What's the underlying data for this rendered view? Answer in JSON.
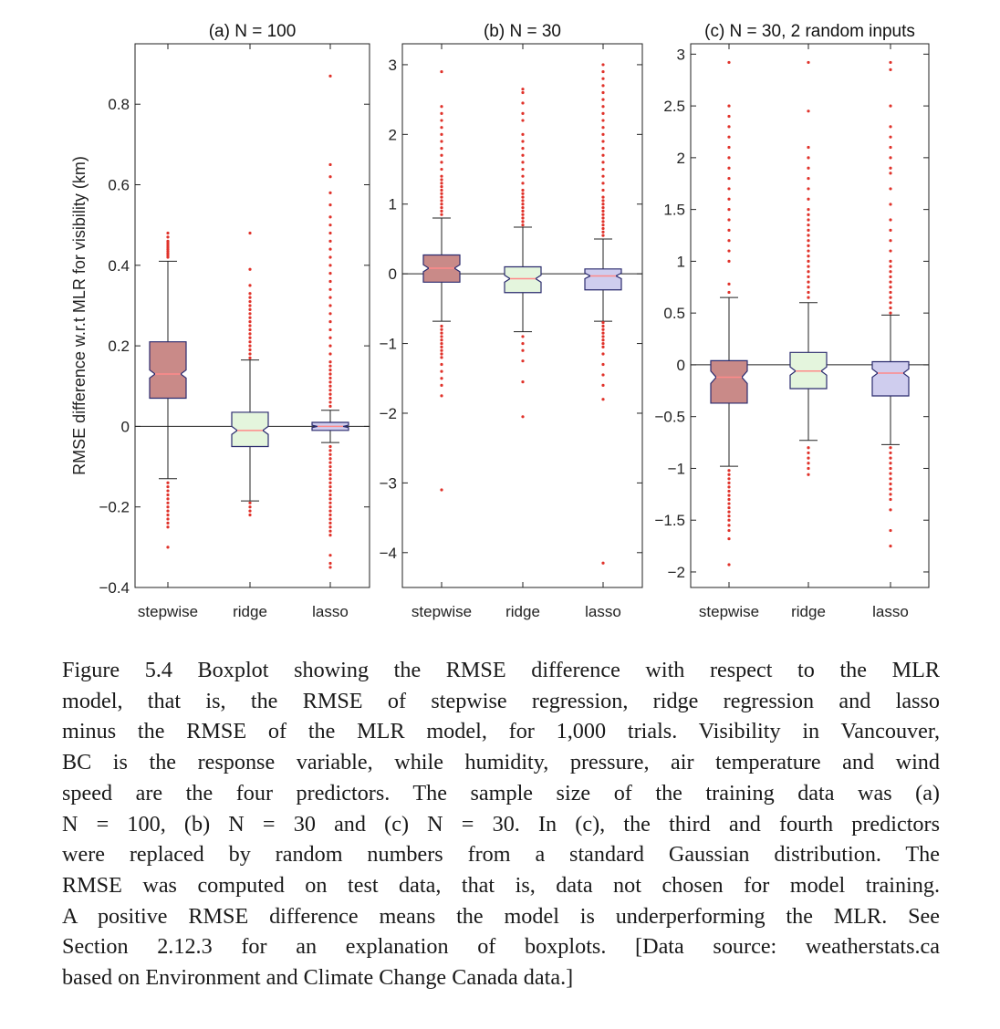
{
  "chart_data": [
    {
      "type": "box",
      "title": "(a) N = 100",
      "ylabel": "RMSE difference w.r.t MLR for visibility (km)",
      "ylim": [
        -0.4,
        0.95
      ],
      "yticks": [
        -0.4,
        -0.2,
        0,
        0.2,
        0.4,
        0.6,
        0.8
      ],
      "ytick_labels": [
        "−0.4",
        "−0.2",
        "0",
        "0.2",
        "0.4",
        "0.6",
        "0.8"
      ],
      "categories": [
        "stepwise",
        "ridge",
        "lasso"
      ],
      "boxes": [
        {
          "name": "stepwise",
          "color": "#c98a88",
          "median": 0.13,
          "q1": 0.07,
          "q3": 0.21,
          "notch_lo": 0.12,
          "notch_hi": 0.14,
          "whisker_lo": -0.13,
          "whisker_hi": 0.41,
          "outliers": [
            0.42,
            0.425,
            0.43,
            0.435,
            0.44,
            0.445,
            0.45,
            0.455,
            0.46,
            0.47,
            0.48,
            -0.14,
            -0.15,
            -0.16,
            -0.17,
            -0.18,
            -0.19,
            -0.2,
            -0.21,
            -0.22,
            -0.23,
            -0.24,
            -0.25,
            -0.3
          ]
        },
        {
          "name": "ridge",
          "color": "#e4f5dd",
          "median": -0.01,
          "q1": -0.05,
          "q3": 0.035,
          "notch_lo": -0.02,
          "notch_hi": 0.0,
          "whisker_lo": -0.185,
          "whisker_hi": 0.165,
          "outliers": [
            0.17,
            0.18,
            0.19,
            0.2,
            0.21,
            0.22,
            0.23,
            0.24,
            0.25,
            0.26,
            0.27,
            0.28,
            0.29,
            0.3,
            0.31,
            0.32,
            0.33,
            0.35,
            0.39,
            0.48,
            -0.19,
            -0.2,
            -0.21,
            -0.22
          ]
        },
        {
          "name": "lasso",
          "color": "#cfcdee",
          "median": 0.0,
          "q1": -0.01,
          "q3": 0.01,
          "notch_lo": -0.003,
          "notch_hi": 0.003,
          "whisker_lo": -0.04,
          "whisker_hi": 0.04,
          "outliers": [
            0.05,
            0.06,
            0.07,
            0.08,
            0.09,
            0.1,
            0.11,
            0.12,
            0.13,
            0.14,
            0.15,
            0.16,
            0.18,
            0.2,
            0.22,
            0.24,
            0.26,
            0.28,
            0.3,
            0.32,
            0.34,
            0.36,
            0.38,
            0.4,
            0.42,
            0.44,
            0.46,
            0.48,
            0.5,
            0.52,
            0.55,
            0.58,
            0.62,
            0.65,
            0.87,
            -0.05,
            -0.06,
            -0.07,
            -0.08,
            -0.09,
            -0.1,
            -0.11,
            -0.12,
            -0.13,
            -0.14,
            -0.15,
            -0.16,
            -0.17,
            -0.18,
            -0.19,
            -0.2,
            -0.21,
            -0.22,
            -0.23,
            -0.24,
            -0.25,
            -0.26,
            -0.27,
            -0.32,
            -0.34,
            -0.35
          ]
        }
      ]
    },
    {
      "type": "box",
      "title": "(b) N = 30",
      "ylim": [
        -4.5,
        3.3
      ],
      "yticks": [
        -4,
        -3,
        -2,
        -1,
        0,
        1,
        2,
        3
      ],
      "ytick_labels": [
        "−4",
        "−3",
        "−2",
        "−1",
        "0",
        "1",
        "2",
        "3"
      ],
      "categories": [
        "stepwise",
        "ridge",
        "lasso"
      ],
      "boxes": [
        {
          "name": "stepwise",
          "color": "#c98a88",
          "median": 0.08,
          "q1": -0.12,
          "q3": 0.27,
          "notch_lo": 0.03,
          "notch_hi": 0.13,
          "whisker_lo": -0.68,
          "whisker_hi": 0.8,
          "outliers": [
            0.85,
            0.9,
            0.95,
            1.0,
            1.05,
            1.1,
            1.15,
            1.2,
            1.25,
            1.3,
            1.35,
            1.4,
            1.5,
            1.6,
            1.7,
            1.8,
            1.9,
            2.0,
            2.1,
            2.2,
            2.3,
            2.4,
            2.9,
            -0.75,
            -0.8,
            -0.85,
            -0.9,
            -0.95,
            -1.0,
            -1.05,
            -1.1,
            -1.15,
            -1.2,
            -1.3,
            -1.4,
            -1.5,
            -1.6,
            -1.75,
            -3.1
          ]
        },
        {
          "name": "ridge",
          "color": "#e4f5dd",
          "median": -0.07,
          "q1": -0.27,
          "q3": 0.1,
          "notch_lo": -0.12,
          "notch_hi": -0.02,
          "whisker_lo": -0.83,
          "whisker_hi": 0.67,
          "outliers": [
            0.7,
            0.75,
            0.8,
            0.85,
            0.9,
            0.95,
            1.0,
            1.05,
            1.1,
            1.15,
            1.2,
            1.3,
            1.4,
            1.5,
            1.6,
            1.7,
            1.8,
            1.9,
            2.0,
            2.2,
            2.3,
            2.45,
            2.6,
            2.65,
            -0.9,
            -1.0,
            -1.1,
            -1.25,
            -1.55,
            -2.05
          ]
        },
        {
          "name": "lasso",
          "color": "#cfcdee",
          "median": -0.03,
          "q1": -0.23,
          "q3": 0.07,
          "notch_lo": -0.07,
          "notch_hi": 0.01,
          "whisker_lo": -0.68,
          "whisker_hi": 0.5,
          "outliers": [
            0.55,
            0.6,
            0.65,
            0.7,
            0.75,
            0.8,
            0.85,
            0.9,
            0.95,
            1.0,
            1.05,
            1.1,
            1.2,
            1.3,
            1.4,
            1.5,
            1.6,
            1.7,
            1.8,
            1.9,
            2.0,
            2.1,
            2.2,
            2.3,
            2.4,
            2.5,
            2.6,
            2.7,
            2.8,
            2.9,
            3.0,
            -0.7,
            -0.75,
            -0.8,
            -0.85,
            -0.9,
            -0.95,
            -1.0,
            -1.05,
            -1.15,
            -1.3,
            -1.45,
            -1.6,
            -1.8,
            -4.15
          ]
        }
      ]
    },
    {
      "type": "box",
      "title": "(c) N = 30, 2 random inputs",
      "ylim": [
        -2.15,
        3.1
      ],
      "yticks": [
        -2,
        -1.5,
        -1,
        -0.5,
        0,
        0.5,
        1,
        1.5,
        2,
        2.5,
        3
      ],
      "ytick_labels": [
        "−2",
        "−1.5",
        "−1",
        "−0.5",
        "0",
        "0.5",
        "1",
        "1.5",
        "2",
        "2.5",
        "3"
      ],
      "categories": [
        "stepwise",
        "ridge",
        "lasso"
      ],
      "boxes": [
        {
          "name": "stepwise",
          "color": "#c98a88",
          "median": -0.12,
          "q1": -0.37,
          "q3": 0.04,
          "notch_lo": -0.18,
          "notch_hi": -0.06,
          "whisker_lo": -0.98,
          "whisker_hi": 0.65,
          "outliers": [
            0.7,
            0.78,
            1.0,
            1.1,
            1.2,
            1.3,
            1.4,
            1.5,
            1.6,
            1.7,
            1.8,
            1.9,
            2.0,
            2.1,
            2.2,
            2.3,
            2.4,
            2.5,
            2.92,
            -1.02,
            -1.06,
            -1.1,
            -1.14,
            -1.18,
            -1.22,
            -1.26,
            -1.3,
            -1.34,
            -1.38,
            -1.42,
            -1.46,
            -1.5,
            -1.55,
            -1.6,
            -1.68,
            -1.93
          ]
        },
        {
          "name": "ridge",
          "color": "#e4f5dd",
          "median": -0.06,
          "q1": -0.23,
          "q3": 0.12,
          "notch_lo": -0.1,
          "notch_hi": -0.02,
          "whisker_lo": -0.73,
          "whisker_hi": 0.6,
          "outliers": [
            0.65,
            0.7,
            0.75,
            0.8,
            0.85,
            0.9,
            0.95,
            1.0,
            1.05,
            1.1,
            1.15,
            1.2,
            1.25,
            1.3,
            1.35,
            1.4,
            1.45,
            1.5,
            1.6,
            1.7,
            1.8,
            1.9,
            2.0,
            2.1,
            2.45,
            2.92,
            -0.8,
            -0.85,
            -0.9,
            -0.95,
            -1.0,
            -1.06
          ]
        },
        {
          "name": "lasso",
          "color": "#cfcdee",
          "median": -0.08,
          "q1": -0.3,
          "q3": 0.03,
          "notch_lo": -0.12,
          "notch_hi": -0.04,
          "whisker_lo": -0.77,
          "whisker_hi": 0.48,
          "outliers": [
            0.5,
            0.55,
            0.6,
            0.65,
            0.7,
            0.75,
            0.8,
            0.85,
            0.9,
            0.95,
            1.0,
            1.1,
            1.2,
            1.3,
            1.4,
            1.55,
            1.7,
            1.85,
            1.9,
            2.0,
            2.1,
            2.2,
            2.3,
            2.5,
            2.85,
            2.92,
            -0.8,
            -0.85,
            -0.9,
            -0.95,
            -1.0,
            -1.05,
            -1.1,
            -1.15,
            -1.2,
            -1.25,
            -1.3,
            -1.4,
            -1.6,
            -1.75
          ]
        }
      ]
    }
  ],
  "caption": {
    "lines": [
      "Figure 5.4 Boxplot showing the RMSE difference with respect to the MLR",
      "model, that is, the RMSE of stepwise regression, ridge regression and lasso",
      "minus the RMSE of the MLR model, for 1,000 trials. Visibility in Vancouver,",
      "BC is the response variable, while humidity, pressure, air temperature and wind",
      "speed are the four predictors. The sample size of the training data was (a)",
      "N = 100, (b) N = 30 and (c) N = 30. In (c), the third and fourth predictors",
      "were replaced by random numbers from a standard Gaussian distribution. The",
      "RMSE was computed on test data, that is, data not chosen for model training.",
      "A positive RMSE difference means the model is underperforming the MLR. See",
      "Section 2.12.3 for an explanation of boxplots. [Data source: weatherstats.ca",
      "based on Environment and Climate Change Canada data.]"
    ]
  },
  "colors": {
    "outlier": "#e0322a",
    "median_line": "#ff8a8a",
    "box_edge": "#2b2b6e",
    "whisker": "#222222"
  }
}
